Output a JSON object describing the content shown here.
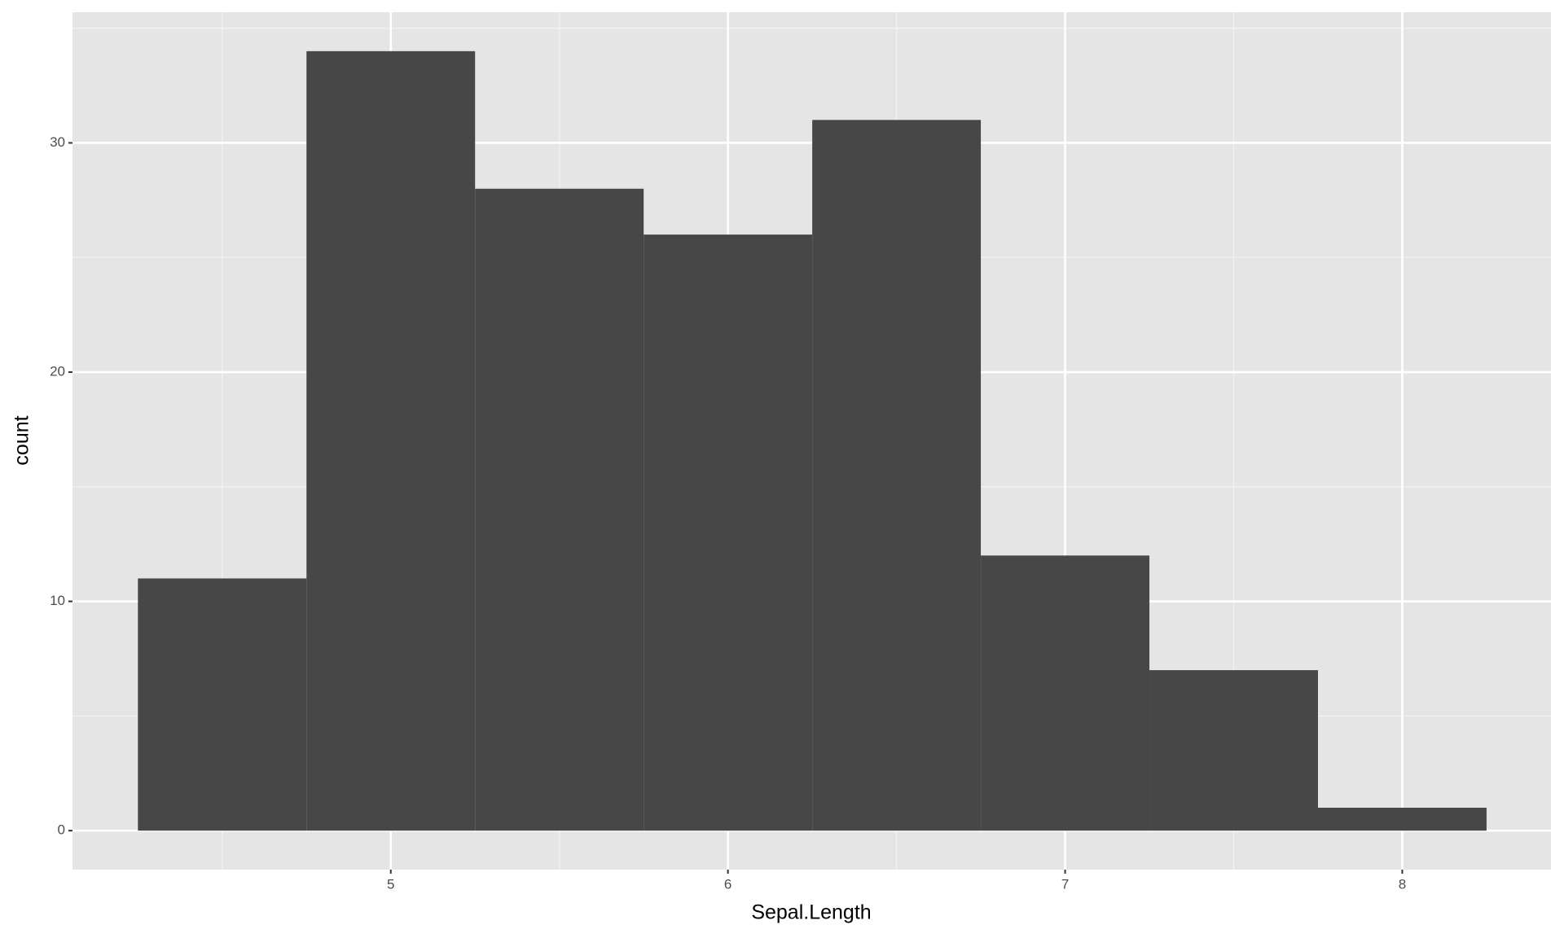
{
  "chart_data": {
    "type": "histogram",
    "bins": [
      4.25,
      4.75,
      5.25,
      5.75,
      6.25,
      6.75,
      7.25,
      7.75,
      8.25
    ],
    "values": [
      11,
      34,
      28,
      26,
      31,
      12,
      7,
      1
    ],
    "color": "#474747",
    "x_label": "Sepal.Length",
    "y_label": "count",
    "xlim": [
      4.056,
      8.441
    ],
    "ylim": [
      -1.7,
      35.7
    ],
    "xticks": [
      5,
      6,
      7,
      8
    ],
    "yticks": [
      0,
      10,
      20,
      30
    ],
    "grid": true
  }
}
